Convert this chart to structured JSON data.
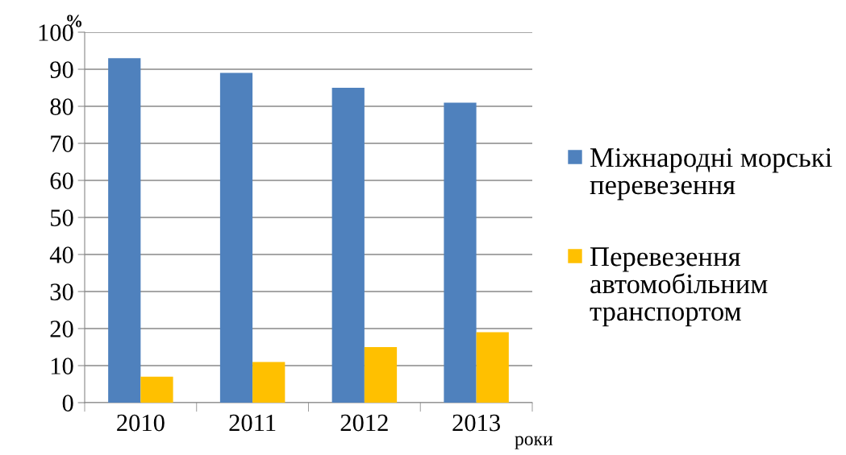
{
  "chart_data": {
    "type": "bar",
    "categories": [
      "2010",
      "2011",
      "2012",
      "2013"
    ],
    "series": [
      {
        "name": "Міжнародні морські перевезення",
        "color": "#4f81bd",
        "values": [
          93,
          89,
          85,
          81
        ]
      },
      {
        "name": "Перевезення автомобільним транспортом",
        "color": "#ffc000",
        "values": [
          7,
          11,
          15,
          19
        ]
      }
    ],
    "xlabel": "роки",
    "ylabel": "%",
    "ylim": [
      0,
      100
    ],
    "yticks": [
      0,
      10,
      20,
      30,
      40,
      50,
      60,
      70,
      80,
      90,
      100
    ],
    "grid": "y",
    "legend": "right"
  }
}
